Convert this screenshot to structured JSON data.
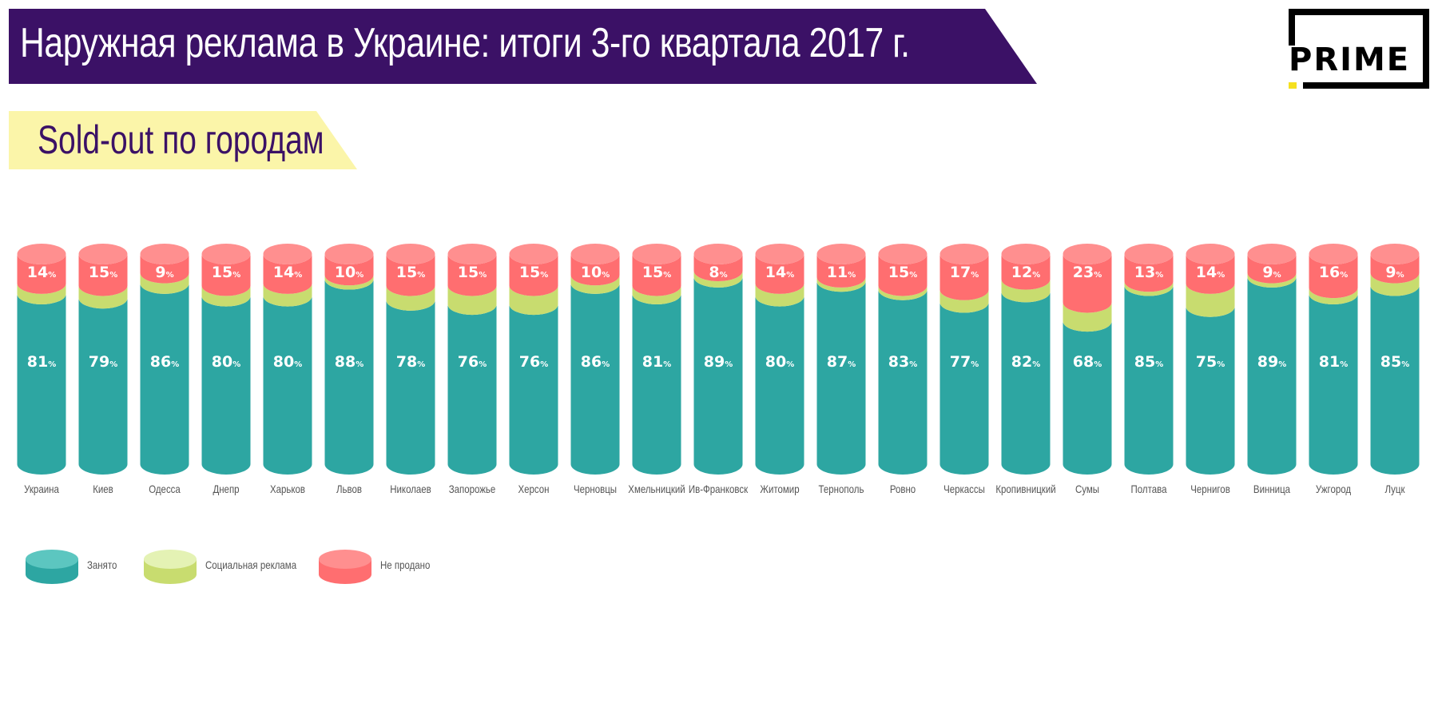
{
  "header": {
    "title": "Наружная реклама в Украине: итоги 3-го квартала 2017 г.",
    "subtitle": "Sold-out по городам",
    "logo_text": "PRIME"
  },
  "colors": {
    "occupied": "#2da6a2",
    "occupied_top": "#5cc6c0",
    "social": "#c8dc6f",
    "social_top": "#e4f2b4",
    "unsold": "#ff6e70",
    "unsold_top": "#ff8f8f",
    "title_bg": "#3b1166",
    "subtitle_bg": "#fbf5a9"
  },
  "chart_data": {
    "type": "bar",
    "stacked": true,
    "unit": "%",
    "categories": [
      "Украина",
      "Киев",
      "Одесса",
      "Днепр",
      "Харьков",
      "Львов",
      "Николаев",
      "Запорожье",
      "Херсон",
      "Черновцы",
      "Хмельницкий",
      "Ив-Франковск",
      "Житомир",
      "Тернополь",
      "Ровно",
      "Черкассы",
      "Кропивницкий",
      "Сумы",
      "Полтава",
      "Чернигов",
      "Винница",
      "Ужгород",
      "Луцк"
    ],
    "series": [
      {
        "name": "Занято",
        "values": [
          81,
          79,
          86,
          80,
          80,
          88,
          78,
          76,
          76,
          86,
          81,
          89,
          80,
          87,
          83,
          77,
          82,
          68,
          85,
          75,
          89,
          81,
          85
        ]
      },
      {
        "name": "Социальная реклама",
        "values": [
          5,
          6,
          5,
          5,
          6,
          2,
          7,
          9,
          9,
          4,
          4,
          3,
          6,
          2,
          2,
          6,
          6,
          9,
          2,
          11,
          2,
          3,
          6
        ]
      },
      {
        "name": "Не продано",
        "values": [
          14,
          15,
          9,
          15,
          14,
          10,
          15,
          15,
          15,
          10,
          15,
          8,
          14,
          11,
          15,
          17,
          12,
          23,
          13,
          14,
          9,
          16,
          9
        ]
      }
    ],
    "ylim": [
      0,
      100
    ],
    "legend_position": "bottom-left"
  }
}
